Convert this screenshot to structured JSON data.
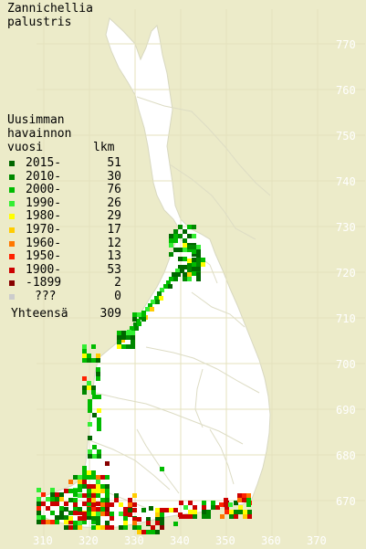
{
  "title_line1": "Zannichellia",
  "title_line2": "palustris",
  "legend": {
    "header": [
      "Uusimman",
      "havainnon"
    ],
    "col_year": "vuosi",
    "col_count": "lkm",
    "items": [
      {
        "label": "2015-",
        "count": "51",
        "color": "#006600"
      },
      {
        "label": "2010-",
        "count": "30",
        "color": "#008800"
      },
      {
        "label": "2000-",
        "count": "76",
        "color": "#00bb00"
      },
      {
        "label": "1990-",
        "count": "26",
        "color": "#33ee33"
      },
      {
        "label": "1980-",
        "count": "29",
        "color": "#ffff00"
      },
      {
        "label": "1970-",
        "count": "17",
        "color": "#ffcc00"
      },
      {
        "label": "1960-",
        "count": "12",
        "color": "#ff7700"
      },
      {
        "label": "1950-",
        "count": "13",
        "color": "#ff2200"
      },
      {
        "label": "1900-",
        "count": "53",
        "color": "#cc0000"
      },
      {
        "label": "-1899",
        "count": "2",
        "color": "#880000"
      },
      {
        "label": "???",
        "count": "0",
        "color": "#cccccc"
      }
    ],
    "total_label": "Yhteensä",
    "total_count": "309"
  },
  "grid": {
    "y_labels": [
      "770",
      "760",
      "750",
      "740",
      "730",
      "720",
      "710",
      "700",
      "690",
      "680",
      "670"
    ],
    "x_labels": [
      "310",
      "320",
      "330",
      "340",
      "350",
      "360",
      "370"
    ]
  },
  "colors": {
    "background": "#ecebc9",
    "land": "#ffffff",
    "grid": "#dcdcb0",
    "border": "#d8d8c0"
  }
}
